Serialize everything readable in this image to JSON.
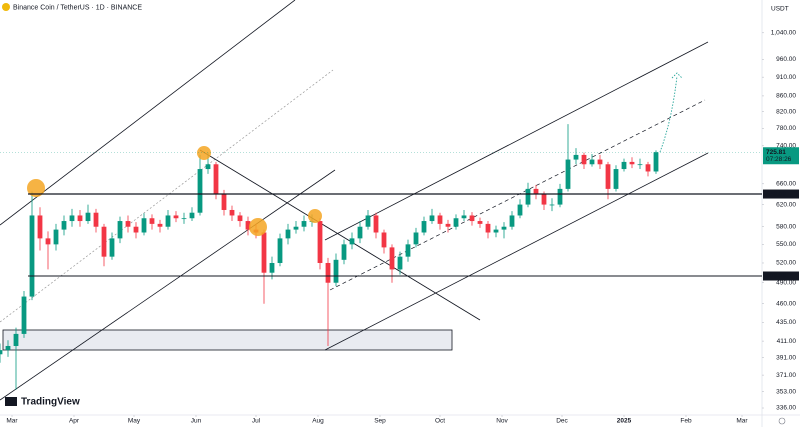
{
  "chart_data": {
    "type": "candlestick",
    "title": "Binance Coin / TetherUS · 1D · BINANCE",
    "currency": "USDT",
    "brand": "TradingView",
    "log_scale": true,
    "up_color": "#089981",
    "down_color": "#f23645",
    "xlim": [
      -6,
      375
    ],
    "ylim": [
      329,
      1148
    ],
    "xticks": [
      {
        "value": 0,
        "label": "Mar"
      },
      {
        "value": 31,
        "label": "Apr"
      },
      {
        "value": 61,
        "label": "May"
      },
      {
        "value": 92,
        "label": "Jun"
      },
      {
        "value": 122,
        "label": "Jul"
      },
      {
        "value": 153,
        "label": "Aug"
      },
      {
        "value": 184,
        "label": "Sep"
      },
      {
        "value": 214,
        "label": "Oct"
      },
      {
        "value": 245,
        "label": "Nov"
      },
      {
        "value": 275,
        "label": "Dec"
      },
      {
        "value": 306,
        "label": "2025"
      },
      {
        "value": 337,
        "label": "Feb"
      },
      {
        "value": 365,
        "label": "Mar"
      }
    ],
    "yticks": [
      {
        "value": 1040,
        "label": "1,040.00"
      },
      {
        "value": 960,
        "label": "960.00"
      },
      {
        "value": 910,
        "label": "910.00"
      },
      {
        "value": 860,
        "label": "860.00"
      },
      {
        "value": 820,
        "label": "820.00"
      },
      {
        "value": 780,
        "label": "780.00"
      },
      {
        "value": 740,
        "label": "740.00"
      },
      {
        "value": 660,
        "label": "660.00"
      },
      {
        "value": 620,
        "label": "620.00"
      },
      {
        "value": 580,
        "label": "580.00"
      },
      {
        "value": 550,
        "label": "550.00"
      },
      {
        "value": 520,
        "label": "520.00"
      },
      {
        "value": 490,
        "label": "490.00"
      },
      {
        "value": 460,
        "label": "460.00"
      },
      {
        "value": 435,
        "label": "435.00"
      },
      {
        "value": 411,
        "label": "411.00"
      },
      {
        "value": 391,
        "label": "391.00"
      },
      {
        "value": 371,
        "label": "371.00"
      },
      {
        "value": 353,
        "label": "353.00"
      },
      {
        "value": 336,
        "label": "336.00"
      }
    ],
    "price_lines": [
      {
        "value": 640,
        "label": "640.00"
      },
      {
        "value": 500,
        "label": "500.00"
      }
    ],
    "last_price": {
      "value": 725.81,
      "label": "725.81"
    },
    "countdown": "07:28:26",
    "x": [
      -6,
      -2,
      2,
      6,
      10,
      14,
      18,
      22,
      26,
      30,
      34,
      38,
      42,
      46,
      50,
      54,
      58,
      62,
      66,
      70,
      74,
      78,
      82,
      86,
      90,
      94,
      98,
      102,
      106,
      110,
      114,
      118,
      122,
      126,
      130,
      134,
      138,
      142,
      146,
      150,
      154,
      158,
      162,
      166,
      170,
      174,
      178,
      182,
      186,
      190,
      194,
      198,
      202,
      206,
      210,
      214,
      218,
      222,
      226,
      230,
      234,
      238,
      242,
      246,
      250,
      254,
      258,
      262,
      266,
      270,
      274,
      278,
      282,
      286,
      290,
      294,
      298,
      302,
      306,
      310,
      314,
      318,
      322
    ],
    "open": [
      395,
      400,
      405,
      420,
      470,
      600,
      560,
      550,
      575,
      590,
      600,
      590,
      605,
      580,
      530,
      560,
      590,
      580,
      570,
      595,
      585,
      580,
      600,
      595,
      595,
      605,
      690,
      700,
      640,
      610,
      600,
      590,
      575,
      570,
      505,
      520,
      560,
      575,
      580,
      590,
      590,
      520,
      490,
      525,
      550,
      560,
      580,
      600,
      570,
      545,
      510,
      530,
      550,
      570,
      590,
      600,
      585,
      580,
      595,
      600,
      590,
      585,
      570,
      575,
      580,
      600,
      620,
      650,
      640,
      620,
      620,
      650,
      710,
      720,
      700,
      710,
      700,
      650,
      690,
      705,
      700,
      700,
      685
    ],
    "high": [
      408,
      412,
      428,
      478,
      645,
      615,
      572,
      585,
      600,
      612,
      610,
      620,
      612,
      585,
      570,
      598,
      600,
      588,
      604,
      602,
      592,
      610,
      608,
      605,
      615,
      720,
      725,
      705,
      648,
      618,
      606,
      598,
      585,
      575,
      530,
      568,
      585,
      590,
      600,
      602,
      595,
      528,
      535,
      558,
      570,
      590,
      610,
      605,
      575,
      550,
      538,
      558,
      578,
      598,
      612,
      605,
      592,
      602,
      610,
      606,
      596,
      590,
      582,
      588,
      608,
      630,
      662,
      658,
      645,
      632,
      660,
      790,
      735,
      725,
      722,
      720,
      705,
      698,
      712,
      715,
      712,
      705,
      730
    ],
    "low": [
      385,
      392,
      355,
      415,
      465,
      540,
      510,
      540,
      565,
      580,
      580,
      585,
      570,
      515,
      525,
      552,
      570,
      560,
      565,
      575,
      570,
      575,
      588,
      585,
      590,
      600,
      680,
      630,
      600,
      590,
      580,
      565,
      560,
      460,
      495,
      515,
      550,
      568,
      572,
      580,
      510,
      405,
      485,
      518,
      542,
      552,
      575,
      560,
      535,
      490,
      502,
      522,
      545,
      565,
      585,
      575,
      570,
      575,
      590,
      582,
      578,
      560,
      562,
      560,
      575,
      595,
      615,
      630,
      610,
      608,
      615,
      645,
      700,
      690,
      695,
      690,
      630,
      645,
      685,
      692,
      690,
      675,
      680
    ],
    "close": [
      400,
      405,
      420,
      470,
      600,
      560,
      550,
      575,
      590,
      600,
      590,
      605,
      580,
      530,
      560,
      590,
      580,
      570,
      595,
      585,
      580,
      600,
      595,
      595,
      605,
      690,
      700,
      640,
      610,
      600,
      590,
      575,
      570,
      505,
      520,
      560,
      575,
      580,
      590,
      590,
      520,
      490,
      525,
      550,
      560,
      580,
      600,
      570,
      545,
      510,
      530,
      550,
      570,
      590,
      600,
      585,
      580,
      595,
      600,
      590,
      585,
      570,
      575,
      580,
      600,
      620,
      650,
      640,
      620,
      620,
      650,
      710,
      720,
      700,
      710,
      700,
      650,
      690,
      705,
      700,
      700,
      685,
      725.81
    ]
  }
}
